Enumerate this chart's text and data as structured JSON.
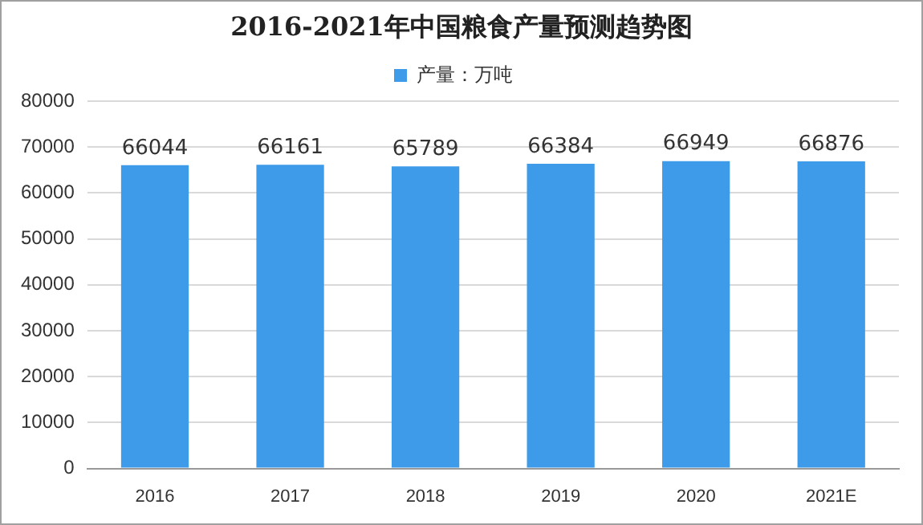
{
  "chart_data": {
    "type": "bar",
    "title": "2016-2021年中国粮食产量预测趋势图",
    "categories": [
      "2016",
      "2017",
      "2018",
      "2019",
      "2020",
      "2021E"
    ],
    "series": [
      {
        "name": "产量：万吨",
        "color": "#3d9be9",
        "values": [
          66044,
          66161,
          65789,
          66384,
          66949,
          66876
        ]
      }
    ],
    "ylim": [
      0,
      80000
    ],
    "yticks": [
      0,
      10000,
      20000,
      30000,
      40000,
      50000,
      60000,
      70000,
      80000
    ],
    "grid": "y",
    "legend": "top",
    "data_labels": true
  }
}
